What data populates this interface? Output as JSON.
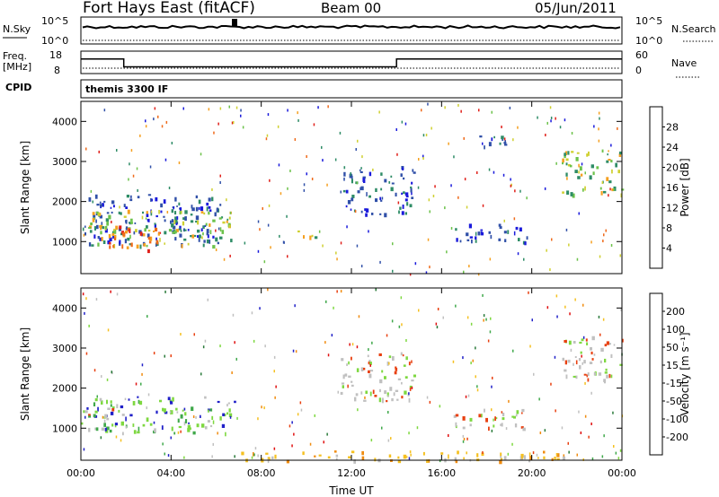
{
  "header": {
    "station": "Fort Hays East (fitACF)",
    "beam": "Beam 00",
    "date": "05/Jun/2011"
  },
  "summary": {
    "nsky_label": "N.Sky",
    "nsky_ticks": [
      "10^5",
      "10^0"
    ],
    "nsearch_label": "N.Search",
    "nsearch_ticks": [
      "10^5",
      "10^0"
    ],
    "freq_label_line1": "Freq.",
    "freq_label_line2": "[MHz]",
    "freq_ticks": [
      "18",
      "8"
    ],
    "nave_label": "Nave",
    "nave_ticks": [
      "60",
      "0"
    ],
    "cpid_label": "CPID",
    "cpid_text": "themis 3300 IF",
    "freq_steps": [
      {
        "from_hour": 0.0,
        "to_hour": 1.9,
        "freq_mhz": 14.8
      },
      {
        "from_hour": 1.9,
        "to_hour": 14.0,
        "freq_mhz": 10.6
      },
      {
        "from_hour": 14.0,
        "to_hour": 24.0,
        "freq_mhz": 14.8
      }
    ]
  },
  "chart_data": [
    {
      "type": "heatmap",
      "panel": "power",
      "ylabel": "Slant Range [km]",
      "xlabel": "Time UT",
      "xlim_hours": [
        0,
        24
      ],
      "ylim_km": [
        200,
        4500
      ],
      "x_tick_labels": [
        "00:00",
        "04:00",
        "08:00",
        "12:00",
        "16:00",
        "20:00",
        "00:00"
      ],
      "y_ticks": [
        1000,
        2000,
        3000,
        4000
      ],
      "colorbar": {
        "label": "Power [dB]",
        "ticks": [
          "4",
          "8",
          "12",
          "16",
          "20",
          "24",
          "28"
        ],
        "colors": [
          "#1a1adb",
          "#3050a8",
          "#2e8c66",
          "#6cc24a",
          "#cfd030",
          "#f5a020",
          "#ef6a1a",
          "#e0201a"
        ]
      },
      "regions": [
        {
          "t": [
            0.0,
            6.2
          ],
          "r": [
            950,
            2200
          ],
          "level": "low"
        },
        {
          "t": [
            0.3,
            6.8
          ],
          "r": [
            900,
            1800
          ],
          "level": "medium"
        },
        {
          "t": [
            1.2,
            3.7
          ],
          "r": [
            800,
            1400
          ],
          "level": "high"
        },
        {
          "t": [
            9.6,
            10.6
          ],
          "r": [
            1050,
            1350
          ],
          "level": "medium"
        },
        {
          "t": [
            11.5,
            14.8
          ],
          "r": [
            1700,
            2900
          ],
          "level": "low"
        },
        {
          "t": [
            16.5,
            19.8
          ],
          "r": [
            1000,
            1500
          ],
          "level": "low"
        },
        {
          "t": [
            17.5,
            19.0
          ],
          "r": [
            3300,
            3700
          ],
          "level": "low"
        },
        {
          "t": [
            21.3,
            24.0
          ],
          "r": [
            2200,
            3300
          ],
          "level": "medium"
        }
      ]
    },
    {
      "type": "heatmap",
      "panel": "velocity",
      "ylabel": "Slant Range [km]",
      "xlabel": "Time UT",
      "xlim_hours": [
        0,
        24
      ],
      "ylim_km": [
        200,
        4500
      ],
      "x_tick_labels": [
        "00:00",
        "04:00",
        "08:00",
        "12:00",
        "16:00",
        "20:00",
        "00:00"
      ],
      "y_ticks": [
        1000,
        2000,
        3000,
        4000
      ],
      "colorbar": {
        "label": "Velocity [m s⁻¹]",
        "ticks": [
          "200",
          "100",
          "50",
          "15",
          "-15",
          "-50",
          "-100",
          "-200"
        ],
        "colors": [
          "#2020c8",
          "#2a7a3a",
          "#3fa84a",
          "#7ed840",
          "#c0c0c0",
          "#f5c020",
          "#f08c10",
          "#e84010",
          "#e01010"
        ]
      },
      "regions": [
        {
          "t": [
            0.0,
            6.8
          ],
          "r": [
            900,
            1800
          ],
          "level": "green"
        },
        {
          "t": [
            0.0,
            1.5
          ],
          "r": [
            1200,
            1500
          ],
          "level": "grey"
        },
        {
          "t": [
            11.5,
            14.8
          ],
          "r": [
            1700,
            2900
          ],
          "level": "grey"
        },
        {
          "t": [
            16.5,
            19.8
          ],
          "r": [
            1000,
            1500
          ],
          "level": "grey"
        },
        {
          "t": [
            21.3,
            24.0
          ],
          "r": [
            2200,
            3300
          ],
          "level": "grey"
        },
        {
          "t": [
            7.0,
            22.0
          ],
          "r": [
            200,
            450
          ],
          "level": "orange"
        }
      ]
    }
  ]
}
